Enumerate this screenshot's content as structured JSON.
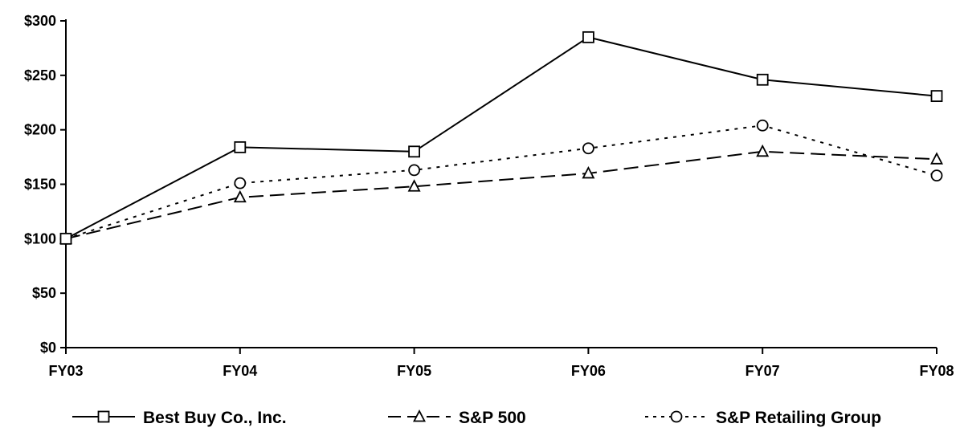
{
  "chart_data": {
    "type": "line",
    "title": "",
    "xlabel": "",
    "ylabel": "",
    "categories": [
      "FY03",
      "FY04",
      "FY05",
      "FY06",
      "FY07",
      "FY08"
    ],
    "ylim": [
      0,
      300
    ],
    "yticks": [
      0,
      50,
      100,
      150,
      200,
      250,
      300
    ],
    "ytick_labels": [
      "$0",
      "$50",
      "$100",
      "$150",
      "$200",
      "$250",
      "$300"
    ],
    "grid": false,
    "legend_position": "bottom",
    "series": [
      {
        "name": "Best Buy Co., Inc.",
        "values": [
          100,
          184,
          180,
          285,
          246,
          231
        ],
        "marker": "square",
        "dash": "solid"
      },
      {
        "name": "S&P 500",
        "values": [
          100,
          138,
          148,
          160,
          180,
          173
        ],
        "marker": "triangle",
        "dash": "dashed"
      },
      {
        "name": "S&P Retailing Group",
        "values": [
          100,
          151,
          163,
          183,
          204,
          158
        ],
        "marker": "circle",
        "dash": "dotted"
      }
    ]
  }
}
